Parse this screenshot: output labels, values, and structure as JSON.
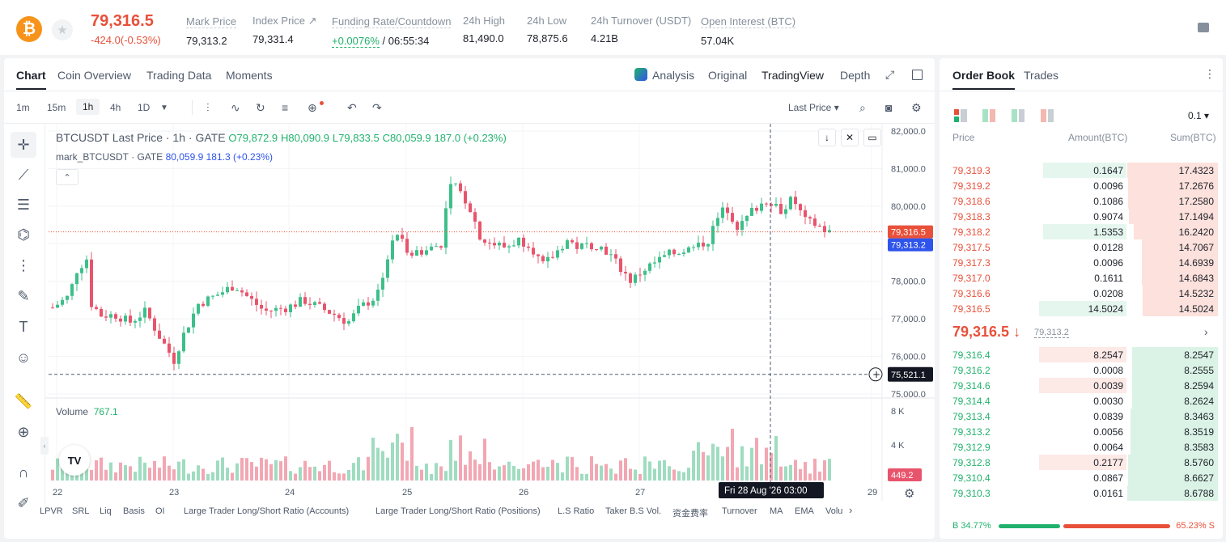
{
  "ticker": {
    "last_price": "79,316.5",
    "change": "-424.0(-0.53%)",
    "mark_price_label": "Mark Price",
    "mark_price": "79,313.2",
    "index_price_label": "Index Price ↗",
    "index_price": "79,331.4",
    "funding_label": "Funding Rate/Countdown",
    "funding_rate": "+0.0076%",
    "countdown": " / 06:55:34",
    "high_label": "24h High",
    "high": "81,490.0",
    "low_label": "24h Low",
    "low": "78,875.6",
    "turnover_label": "24h Turnover (USDT)",
    "turnover": "4.21B",
    "oi_label": "Open Interest (BTC)",
    "oi": "57.04K"
  },
  "chart_tabs": [
    "Chart",
    "Coin Overview",
    "Trading Data",
    "Moments"
  ],
  "view_tabs": {
    "analysis": "Analysis",
    "original": "Original",
    "tradingview": "TradingView",
    "depth": "Depth"
  },
  "timeframes": [
    "1m",
    "15m",
    "1h",
    "4h",
    "1D"
  ],
  "price_source": "Last Price ▾",
  "legend": {
    "main": "BTCUSDT Last Price · 1h · GATE",
    "o": "O79,872.9",
    "h": "H80,090.9",
    "l": "L79,833.5",
    "c": "C80,059.9",
    "chg": "187.0 (+0.23%)",
    "mark": "mark_BTCUSDT · GATE",
    "mark_vals": "80,059.9  181.3 (+0.23%)"
  },
  "volume_label": "Volume",
  "volume_value": "767.1",
  "price_axis": [
    "82,000.0",
    "81,000.0",
    "80,000.0",
    "79,000.0",
    "78,000.0",
    "77,000.0",
    "76,000.0",
    "75,000.0"
  ],
  "vol_axis": [
    "8 K",
    "4 K"
  ],
  "price_labels": {
    "last": "79,316.5",
    "mark": "79,313.2",
    "cross": "75,521.1",
    "vol": "449.2"
  },
  "time_axis": [
    "22",
    "23",
    "24",
    "25",
    "26",
    "27",
    "29"
  ],
  "crosshair_time": "Fri 28 Aug '26   03:00",
  "indicators": [
    "LPVR",
    "SRL",
    "Liq",
    "Basis",
    "OI",
    "Large Trader Long/Short Ratio (Accounts)",
    "Large Trader Long/Short Ratio (Positions)",
    "L.S Ratio",
    "Taker B.S Vol.",
    "资金费率",
    "Turnover",
    "MA",
    "EMA",
    "Volu"
  ],
  "tv_logo": "TV",
  "colors": {
    "up": "#20b26c",
    "down": "#e8503a",
    "up_candle": "#3dbf8a",
    "down_candle": "#e8546c",
    "accent": "#2f54eb"
  },
  "order_book": {
    "tabs": [
      "Order Book",
      "Trades"
    ],
    "precision": "0.1 ▾",
    "headers": {
      "price": "Price",
      "amount": "Amount(BTC)",
      "sum": "Sum(BTC)"
    },
    "asks": [
      {
        "price": "79,319.3",
        "amount": "0.1647",
        "sum": "17.4323",
        "afill": 0.95,
        "sfill": 1.0
      },
      {
        "price": "79,319.2",
        "amount": "0.0096",
        "sum": "17.2676",
        "afill": 0.0,
        "sfill": 0.99
      },
      {
        "price": "79,318.6",
        "amount": "0.1086",
        "sum": "17.2580",
        "afill": 0.0,
        "sfill": 0.99
      },
      {
        "price": "79,318.3",
        "amount": "0.9074",
        "sum": "17.1494",
        "afill": 0.0,
        "sfill": 0.98
      },
      {
        "price": "79,318.2",
        "amount": "1.5353",
        "sum": "16.2420",
        "afill": 0.95,
        "sfill": 0.93
      },
      {
        "price": "79,317.5",
        "amount": "0.0128",
        "sum": "14.7067",
        "afill": 0.0,
        "sfill": 0.84
      },
      {
        "price": "79,317.3",
        "amount": "0.0096",
        "sum": "14.6939",
        "afill": 0.0,
        "sfill": 0.84
      },
      {
        "price": "79,317.0",
        "amount": "0.1611",
        "sum": "14.6843",
        "afill": 0.0,
        "sfill": 0.84
      },
      {
        "price": "79,316.6",
        "amount": "0.0208",
        "sum": "14.5232",
        "afill": 0.0,
        "sfill": 0.83
      },
      {
        "price": "79,316.5",
        "amount": "14.5024",
        "sum": "14.5024",
        "afill": 1.0,
        "sfill": 0.83
      }
    ],
    "mid_price": "79,316.5 ↓",
    "mid_mark": "79,313.2",
    "bids": [
      {
        "price": "79,316.4",
        "amount": "8.2547",
        "sum": "8.2547",
        "afill": 1.0,
        "sfill": 0.95
      },
      {
        "price": "79,316.2",
        "amount": "0.0008",
        "sum": "8.2555",
        "afill": 0.0,
        "sfill": 0.95
      },
      {
        "price": "79,314.6",
        "amount": "0.0039",
        "sum": "8.2594",
        "afill": 1.0,
        "sfill": 0.95
      },
      {
        "price": "79,314.4",
        "amount": "0.0030",
        "sum": "8.2624",
        "afill": 0.0,
        "sfill": 0.95
      },
      {
        "price": "79,313.4",
        "amount": "0.0839",
        "sum": "8.3463",
        "afill": 0.0,
        "sfill": 0.96
      },
      {
        "price": "79,313.2",
        "amount": "0.0056",
        "sum": "8.3519",
        "afill": 0.0,
        "sfill": 0.96
      },
      {
        "price": "79,312.9",
        "amount": "0.0064",
        "sum": "8.3583",
        "afill": 0.0,
        "sfill": 0.96
      },
      {
        "price": "79,312.8",
        "amount": "0.2177",
        "sum": "8.5760",
        "afill": 1.0,
        "sfill": 0.99
      },
      {
        "price": "79,310.4",
        "amount": "0.0867",
        "sum": "8.6627",
        "afill": 0.0,
        "sfill": 0.99
      },
      {
        "price": "79,310.3",
        "amount": "0.0161",
        "sum": "8.6788",
        "afill": 0.0,
        "sfill": 1.0
      }
    ],
    "buy_ratio": "B 34.77%",
    "sell_ratio": "65.23% S"
  }
}
